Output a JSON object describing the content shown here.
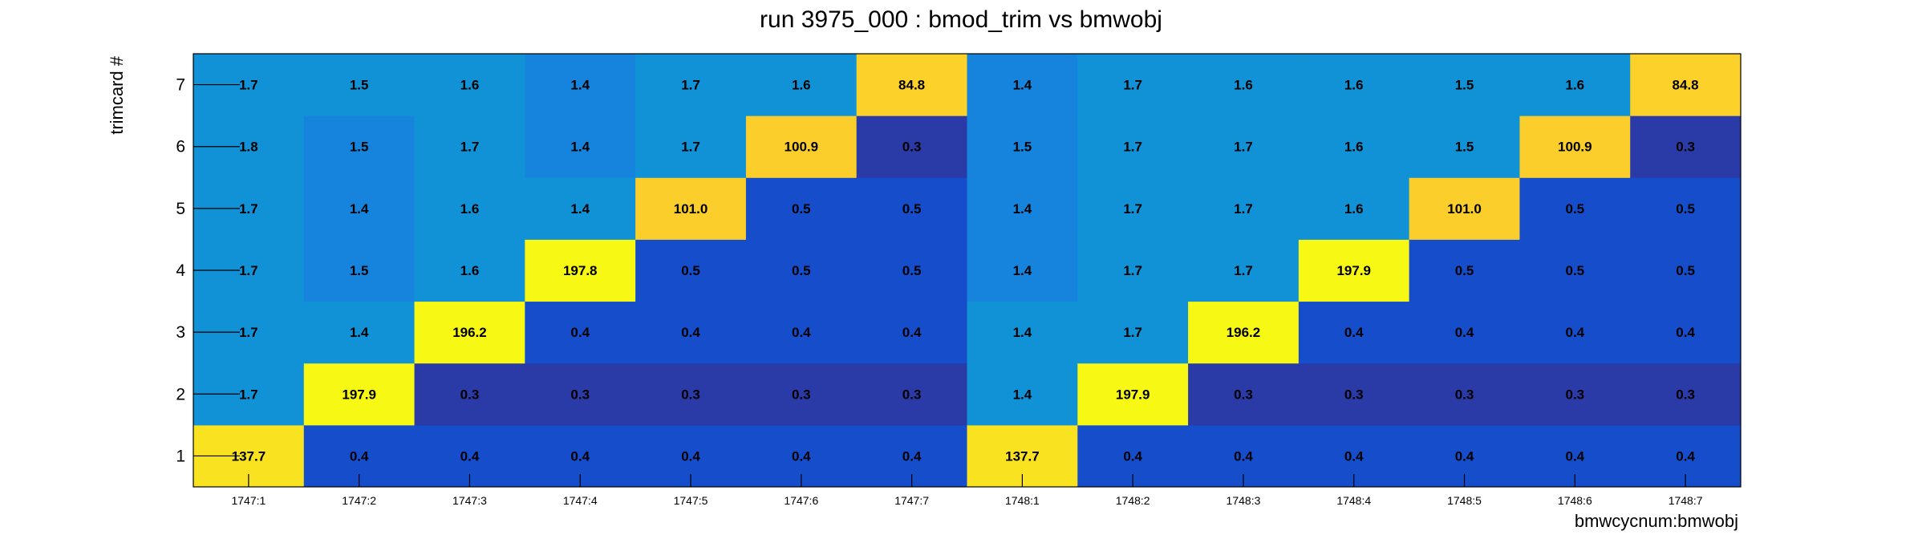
{
  "chart_data": {
    "type": "heatmap",
    "title": "run 3975_000 : bmod_trim vs bmwobj",
    "xlabel": "bmwcycnum:bmwobj",
    "ylabel": "trimcard #",
    "x_categories": [
      "1747:1",
      "1747:2",
      "1747:3",
      "1747:4",
      "1747:5",
      "1747:6",
      "1747:7",
      "1748:1",
      "1748:2",
      "1748:3",
      "1748:4",
      "1748:5",
      "1748:6",
      "1748:7"
    ],
    "y_categories": [
      "1",
      "2",
      "3",
      "4",
      "5",
      "6",
      "7"
    ],
    "values": [
      [
        137.7,
        1.7,
        1.7,
        1.7,
        1.7,
        1.8,
        1.7
      ],
      [
        0.4,
        197.9,
        1.4,
        1.5,
        1.4,
        1.5,
        1.5
      ],
      [
        0.4,
        0.3,
        196.2,
        1.6,
        1.6,
        1.7,
        1.6
      ],
      [
        0.4,
        0.3,
        0.4,
        197.8,
        1.4,
        1.4,
        1.4
      ],
      [
        0.4,
        0.3,
        0.4,
        0.5,
        101.0,
        1.7,
        1.7
      ],
      [
        0.4,
        0.3,
        0.4,
        0.5,
        0.5,
        100.9,
        1.6
      ],
      [
        0.4,
        0.3,
        0.4,
        0.5,
        0.5,
        0.3,
        84.8
      ],
      [
        137.7,
        1.4,
        1.4,
        1.4,
        1.4,
        1.5,
        1.4
      ],
      [
        0.4,
        197.9,
        1.7,
        1.7,
        1.7,
        1.7,
        1.7
      ],
      [
        0.4,
        0.3,
        196.2,
        1.7,
        1.7,
        1.7,
        1.6
      ],
      [
        0.4,
        0.3,
        0.4,
        197.9,
        1.6,
        1.6,
        1.6
      ],
      [
        0.4,
        0.3,
        0.4,
        0.5,
        101.0,
        1.5,
        1.5
      ],
      [
        0.4,
        0.3,
        0.4,
        0.5,
        0.5,
        100.9,
        1.6
      ],
      [
        0.4,
        0.3,
        0.4,
        0.5,
        0.5,
        0.3,
        84.8
      ]
    ],
    "cell_colors": [
      [
        "#f9e21f",
        "#1192d6",
        "#1192d6",
        "#1192d6",
        "#1192d6",
        "#1192d6",
        "#1192d6"
      ],
      [
        "#164dcb",
        "#f7f813",
        "#1192d6",
        "#1684dc",
        "#1684dc",
        "#1684dc",
        "#1192d6"
      ],
      [
        "#164dcb",
        "#2a3aa7",
        "#f7f813",
        "#1192d6",
        "#1192d6",
        "#1192d6",
        "#1192d6"
      ],
      [
        "#164dcb",
        "#2a3aa7",
        "#164dcb",
        "#f7f813",
        "#1192d6",
        "#1684dc",
        "#1684dc"
      ],
      [
        "#164dcb",
        "#2a3aa7",
        "#164dcb",
        "#164dcb",
        "#fbce2b",
        "#1192d6",
        "#1192d6"
      ],
      [
        "#164dcb",
        "#2a3aa7",
        "#164dcb",
        "#164dcb",
        "#164dcb",
        "#fbce2b",
        "#1192d6"
      ],
      [
        "#164dcb",
        "#2a3aa7",
        "#164dcb",
        "#164dcb",
        "#164dcb",
        "#2a3aa7",
        "#fbd12a"
      ],
      [
        "#f9e21f",
        "#1192d6",
        "#1192d6",
        "#1684dc",
        "#1684dc",
        "#1684dc",
        "#1684dc"
      ],
      [
        "#164dcb",
        "#f7f813",
        "#1192d6",
        "#1192d6",
        "#1192d6",
        "#1192d6",
        "#1192d6"
      ],
      [
        "#164dcb",
        "#2a3aa7",
        "#f7f813",
        "#1192d6",
        "#1192d6",
        "#1192d6",
        "#1192d6"
      ],
      [
        "#164dcb",
        "#2a3aa7",
        "#164dcb",
        "#f7f813",
        "#1192d6",
        "#1192d6",
        "#1192d6"
      ],
      [
        "#164dcb",
        "#2a3aa7",
        "#164dcb",
        "#164dcb",
        "#fbce2b",
        "#1192d6",
        "#1192d6"
      ],
      [
        "#164dcb",
        "#2a3aa7",
        "#164dcb",
        "#164dcb",
        "#164dcb",
        "#fbce2b",
        "#1192d6"
      ],
      [
        "#164dcb",
        "#2a3aa7",
        "#164dcb",
        "#164dcb",
        "#164dcb",
        "#2a3aa7",
        "#fbd12a"
      ]
    ],
    "grid": false,
    "legend": "none"
  }
}
